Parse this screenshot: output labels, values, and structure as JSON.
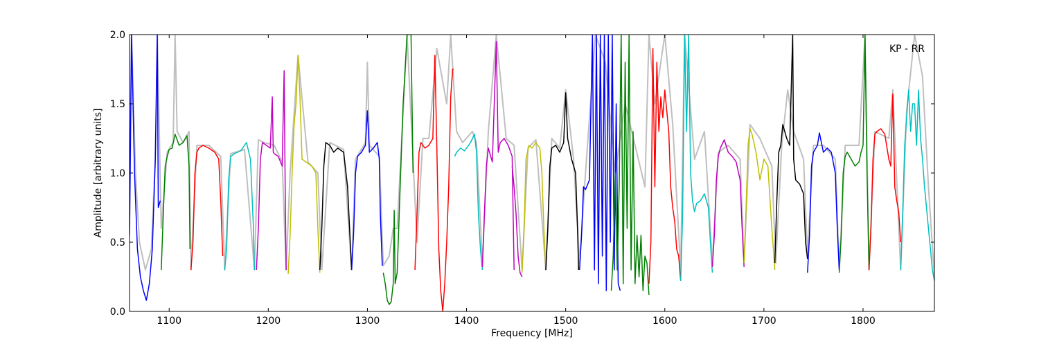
{
  "chart_data": {
    "type": "line",
    "xlabel": "Frequency [MHz]",
    "ylabel": "Amplitude [arbitrary units]",
    "xlim": [
      1060,
      1872
    ],
    "ylim": [
      0.0,
      2.0
    ],
    "xticks": [
      1100,
      1200,
      1300,
      1400,
      1500,
      1600,
      1700,
      1800
    ],
    "yticks": [
      0.0,
      0.5,
      1.0,
      1.5,
      2.0
    ],
    "xtick_labels": [
      "1100",
      "1200",
      "1300",
      "1400",
      "1500",
      "1600",
      "1700",
      "1800"
    ],
    "ytick_labels": [
      "0.0",
      "0.5",
      "1.0",
      "1.5",
      "2.0"
    ],
    "annotation": "KP - RR",
    "grid": false,
    "background_color": "#bfbfbf",
    "series": [
      {
        "color": "#0000ff",
        "x": [
          1060,
          1062,
          1065,
          1068,
          1071,
          1074,
          1077,
          1080,
          1083,
          1086,
          1088,
          1089,
          1091
        ],
        "y": [
          0.55,
          2.0,
          1.0,
          0.45,
          0.25,
          0.15,
          0.08,
          0.2,
          0.45,
          1.1,
          2.0,
          0.75,
          0.8
        ]
      },
      {
        "color": "#008000",
        "x": [
          1092,
          1094,
          1096,
          1098,
          1100,
          1103,
          1106,
          1110,
          1114,
          1118,
          1120,
          1121
        ],
        "y": [
          0.3,
          0.7,
          1.05,
          1.12,
          1.17,
          1.18,
          1.28,
          1.2,
          1.22,
          1.27,
          1.05,
          0.45
        ]
      },
      {
        "color": "#ff0000",
        "x": [
          1122,
          1124,
          1126,
          1128,
          1130,
          1134,
          1140,
          1146,
          1150,
          1152,
          1154
        ],
        "y": [
          0.3,
          0.5,
          1.0,
          1.15,
          1.18,
          1.2,
          1.18,
          1.15,
          1.1,
          0.8,
          0.4
        ]
      },
      {
        "color": "#00bfbf",
        "x": [
          1156,
          1158,
          1160,
          1162,
          1166,
          1172,
          1178,
          1182,
          1185,
          1186
        ],
        "y": [
          0.3,
          0.45,
          0.95,
          1.12,
          1.14,
          1.16,
          1.22,
          1.1,
          0.6,
          0.3
        ]
      },
      {
        "color": "#bf00bf",
        "x": [
          1188,
          1190,
          1192,
          1194,
          1198,
          1202,
          1204,
          1205,
          1206,
          1210,
          1214,
          1216,
          1217,
          1218
        ],
        "y": [
          0.3,
          0.6,
          1.1,
          1.22,
          1.2,
          1.18,
          1.55,
          1.15,
          1.14,
          1.12,
          1.05,
          1.74,
          0.9,
          0.3
        ]
      },
      {
        "color": "#bfbf00",
        "x": [
          1220,
          1222,
          1224,
          1226,
          1228,
          1230,
          1232,
          1234,
          1238,
          1244,
          1248,
          1250,
          1252
        ],
        "y": [
          0.27,
          0.55,
          1.0,
          1.35,
          1.5,
          1.85,
          1.55,
          1.1,
          1.08,
          1.05,
          1.0,
          0.6,
          0.28
        ]
      },
      {
        "color": "#000000",
        "x": [
          1252,
          1254,
          1256,
          1258,
          1262,
          1266,
          1270,
          1276,
          1280,
          1282,
          1284
        ],
        "y": [
          0.3,
          0.6,
          1.05,
          1.22,
          1.2,
          1.15,
          1.18,
          1.15,
          0.9,
          0.6,
          0.3
        ]
      },
      {
        "color": "#0000ff",
        "x": [
          1284,
          1286,
          1288,
          1290,
          1294,
          1298,
          1300,
          1302,
          1306,
          1310,
          1312,
          1313,
          1315
        ],
        "y": [
          0.3,
          0.55,
          1.0,
          1.12,
          1.15,
          1.2,
          1.45,
          1.15,
          1.18,
          1.22,
          1.1,
          0.7,
          0.33
        ]
      },
      {
        "color": "#008000",
        "x": [
          1316,
          1318,
          1320,
          1322,
          1324,
          1326,
          1327,
          1328,
          1330,
          1333,
          1336,
          1340,
          1344,
          1346
        ],
        "y": [
          0.28,
          0.2,
          0.08,
          0.05,
          0.07,
          0.2,
          0.73,
          0.2,
          0.28,
          0.9,
          1.5,
          2.0,
          2.0,
          1.0
        ]
      },
      {
        "color": "#ff0000",
        "x": [
          1348,
          1350,
          1352,
          1354,
          1358,
          1362,
          1366,
          1368,
          1370,
          1372,
          1374,
          1376,
          1378,
          1380,
          1382,
          1384,
          1386,
          1387
        ],
        "y": [
          0.3,
          0.7,
          1.15,
          1.22,
          1.18,
          1.2,
          1.25,
          1.85,
          1.2,
          0.45,
          0.15,
          0.0,
          0.2,
          0.5,
          0.9,
          1.55,
          1.75,
          1.75
        ]
      },
      {
        "color": "#00bfbf",
        "x": [
          1388,
          1390,
          1394,
          1398,
          1404,
          1408,
          1410,
          1412,
          1414,
          1416
        ],
        "y": [
          1.12,
          1.15,
          1.18,
          1.16,
          1.22,
          1.28,
          1.15,
          0.7,
          0.45,
          0.3
        ]
      },
      {
        "color": "#bf00bf",
        "x": [
          1416,
          1418,
          1420,
          1422,
          1426,
          1430,
          1432,
          1434,
          1438,
          1442,
          1446,
          1448
        ],
        "y": [
          0.32,
          0.7,
          1.05,
          1.18,
          1.08,
          1.95,
          1.15,
          1.22,
          1.25,
          1.2,
          1.12,
          0.3
        ]
      },
      {
        "color": "#bf00bf",
        "x": [
          1446,
          1448,
          1450,
          1452,
          1454,
          1456
        ],
        "y": [
          1.05,
          0.9,
          0.7,
          0.4,
          0.28,
          0.25
        ]
      },
      {
        "color": "#bfbf00",
        "x": [
          1456,
          1458,
          1460,
          1463,
          1466,
          1470,
          1474,
          1476,
          1478,
          1480
        ],
        "y": [
          0.28,
          0.6,
          1.1,
          1.2,
          1.18,
          1.22,
          1.18,
          1.0,
          0.6,
          0.3
        ]
      },
      {
        "color": "#000000",
        "x": [
          1480,
          1482,
          1484,
          1486,
          1490,
          1494,
          1498,
          1500,
          1502,
          1506,
          1510,
          1512,
          1513
        ],
        "y": [
          0.3,
          0.6,
          1.05,
          1.18,
          1.2,
          1.15,
          1.22,
          1.58,
          1.25,
          1.1,
          1.0,
          0.6,
          0.3
        ]
      },
      {
        "color": "#0000ff",
        "x": [
          1514,
          1516,
          1518,
          1520,
          1524,
          1527,
          1529,
          1531,
          1533,
          1535,
          1537,
          1539,
          1541,
          1543,
          1545,
          1547,
          1549,
          1551,
          1553,
          1555
        ],
        "y": [
          0.3,
          0.55,
          0.9,
          0.88,
          0.95,
          2.0,
          0.3,
          2.0,
          0.2,
          2.0,
          0.4,
          2.0,
          0.15,
          2.0,
          0.5,
          2.0,
          0.3,
          1.5,
          0.2,
          0.15
        ]
      },
      {
        "color": "#008000",
        "x": [
          1546,
          1548,
          1550,
          1552,
          1554,
          1556,
          1558,
          1560,
          1562,
          1564,
          1566,
          1568,
          1570,
          1572,
          1574,
          1576,
          1578,
          1580,
          1582,
          1584
        ],
        "y": [
          0.15,
          0.4,
          1.0,
          0.3,
          0.9,
          2.0,
          0.2,
          1.8,
          0.6,
          2.0,
          0.3,
          1.3,
          0.2,
          0.55,
          0.25,
          0.55,
          0.15,
          0.4,
          0.35,
          0.12
        ]
      },
      {
        "color": "#ff0000",
        "x": [
          1584,
          1586,
          1588,
          1590,
          1592,
          1594,
          1596,
          1598,
          1600,
          1602,
          1604,
          1606,
          1608,
          1610,
          1612,
          1614,
          1616
        ],
        "y": [
          0.2,
          0.5,
          1.9,
          0.9,
          1.8,
          1.3,
          1.55,
          1.4,
          1.6,
          1.45,
          1.3,
          0.9,
          0.75,
          0.65,
          0.45,
          0.4,
          0.22
        ]
      },
      {
        "color": "#00bfbf",
        "x": [
          1616,
          1618,
          1620,
          1622,
          1624,
          1626,
          1628,
          1630,
          1632,
          1636,
          1640,
          1644,
          1646,
          1648
        ],
        "y": [
          0.22,
          0.7,
          2.0,
          1.3,
          2.0,
          1.0,
          0.8,
          0.72,
          0.78,
          0.8,
          0.85,
          0.75,
          0.5,
          0.28
        ]
      },
      {
        "color": "#bf00bf",
        "x": [
          1648,
          1650,
          1652,
          1654,
          1656,
          1660,
          1664,
          1668,
          1672,
          1676,
          1678,
          1680
        ],
        "y": [
          0.32,
          0.55,
          0.95,
          1.12,
          1.18,
          1.24,
          1.15,
          1.12,
          1.08,
          0.95,
          0.6,
          0.32
        ]
      },
      {
        "color": "#bfbf00",
        "x": [
          1680,
          1682,
          1684,
          1686,
          1688,
          1692,
          1696,
          1700,
          1704,
          1708,
          1710,
          1711
        ],
        "y": [
          0.35,
          0.75,
          1.2,
          1.32,
          1.28,
          1.15,
          0.95,
          1.1,
          1.05,
          0.6,
          0.4,
          0.3
        ]
      },
      {
        "color": "#000000",
        "x": [
          1711,
          1713,
          1715,
          1717,
          1719,
          1721,
          1723,
          1726,
          1729,
          1730,
          1732,
          1736,
          1740,
          1742,
          1744
        ],
        "y": [
          0.35,
          0.8,
          1.15,
          1.2,
          1.35,
          1.3,
          1.25,
          1.2,
          2.0,
          1.1,
          0.95,
          0.92,
          0.85,
          0.5,
          0.38
        ]
      },
      {
        "color": "#0000ff",
        "x": [
          1744,
          1746,
          1748,
          1750,
          1754,
          1756,
          1760,
          1764,
          1768,
          1772,
          1774,
          1776
        ],
        "y": [
          0.28,
          0.55,
          1.05,
          1.15,
          1.2,
          1.29,
          1.15,
          1.18,
          1.15,
          1.0,
          0.6,
          0.3
        ]
      },
      {
        "color": "#008000",
        "x": [
          1776,
          1778,
          1780,
          1782,
          1784,
          1788,
          1792,
          1796,
          1798,
          1800,
          1802,
          1804,
          1806
        ],
        "y": [
          0.28,
          0.55,
          1.0,
          1.12,
          1.15,
          1.1,
          1.05,
          1.08,
          1.15,
          1.2,
          2.0,
          1.0,
          0.3
        ]
      },
      {
        "color": "#ff0000",
        "x": [
          1806,
          1808,
          1810,
          1812,
          1814,
          1818,
          1822,
          1826,
          1828,
          1830,
          1832,
          1834,
          1836,
          1838
        ],
        "y": [
          0.3,
          0.6,
          1.1,
          1.28,
          1.3,
          1.32,
          1.28,
          1.1,
          1.05,
          1.57,
          0.9,
          0.8,
          0.72,
          0.5
        ]
      },
      {
        "color": "#00bfbf",
        "x": [
          1838,
          1840,
          1842,
          1844,
          1846,
          1848,
          1850,
          1852,
          1854,
          1856,
          1858,
          1860,
          1862,
          1864,
          1866,
          1868,
          1870,
          1872
        ],
        "y": [
          0.3,
          0.7,
          1.2,
          1.4,
          1.6,
          1.3,
          1.5,
          1.5,
          1.2,
          1.6,
          1.25,
          1.1,
          0.9,
          0.75,
          0.6,
          0.45,
          0.3,
          0.22
        ]
      }
    ],
    "background_trace": {
      "x": [
        1060,
        1062,
        1066,
        1070,
        1076,
        1082,
        1086,
        1088,
        1092,
        1098,
        1104,
        1106,
        1108,
        1114,
        1120,
        1122,
        1128,
        1140,
        1152,
        1156,
        1162,
        1176,
        1186,
        1190,
        1196,
        1206,
        1214,
        1218,
        1222,
        1230,
        1240,
        1250,
        1254,
        1262,
        1276,
        1284,
        1288,
        1298,
        1300,
        1302,
        1312,
        1316,
        1322,
        1326,
        1330,
        1340,
        1350,
        1356,
        1362,
        1370,
        1380,
        1384,
        1390,
        1396,
        1406,
        1410,
        1416,
        1422,
        1430,
        1440,
        1448,
        1456,
        1462,
        1470,
        1480,
        1486,
        1494,
        1500,
        1508,
        1514,
        1520,
        1530,
        1540,
        1550,
        1560,
        1570,
        1580,
        1584,
        1590,
        1600,
        1608,
        1616,
        1620,
        1630,
        1640,
        1648,
        1654,
        1664,
        1676,
        1680,
        1686,
        1696,
        1708,
        1712,
        1718,
        1724,
        1730,
        1740,
        1744,
        1750,
        1760,
        1772,
        1776,
        1782,
        1796,
        1802,
        1806,
        1812,
        1826,
        1830,
        1838,
        1844,
        1852,
        1860,
        1866,
        1872
      ],
      "y": [
        0.6,
        2.0,
        1.0,
        0.5,
        0.3,
        0.45,
        1.1,
        2.0,
        0.6,
        1.15,
        1.22,
        2.0,
        1.3,
        1.22,
        1.3,
        0.3,
        1.2,
        1.2,
        1.12,
        0.3,
        1.14,
        1.17,
        0.3,
        1.24,
        1.22,
        1.2,
        1.08,
        0.3,
        1.0,
        1.85,
        1.08,
        1.0,
        0.3,
        1.22,
        1.17,
        0.3,
        1.1,
        1.22,
        1.8,
        1.2,
        1.12,
        0.33,
        0.4,
        0.6,
        0.6,
        2.0,
        0.5,
        1.25,
        1.25,
        1.9,
        1.5,
        2.0,
        1.3,
        1.22,
        1.3,
        1.22,
        0.35,
        1.3,
        2.0,
        1.25,
        1.2,
        0.3,
        1.18,
        1.24,
        0.3,
        1.25,
        1.18,
        1.6,
        1.1,
        0.35,
        1.0,
        2.0,
        1.8,
        1.0,
        1.5,
        1.2,
        0.9,
        2.0,
        1.5,
        2.0,
        1.35,
        0.3,
        2.0,
        1.1,
        1.3,
        0.35,
        1.15,
        1.2,
        1.1,
        0.35,
        1.35,
        1.25,
        1.05,
        0.35,
        1.2,
        1.6,
        1.3,
        1.1,
        0.4,
        1.2,
        1.2,
        1.1,
        0.3,
        1.2,
        1.2,
        2.0,
        0.3,
        1.3,
        1.25,
        1.6,
        0.3,
        1.45,
        2.0,
        1.7,
        0.9,
        0.25
      ]
    }
  }
}
